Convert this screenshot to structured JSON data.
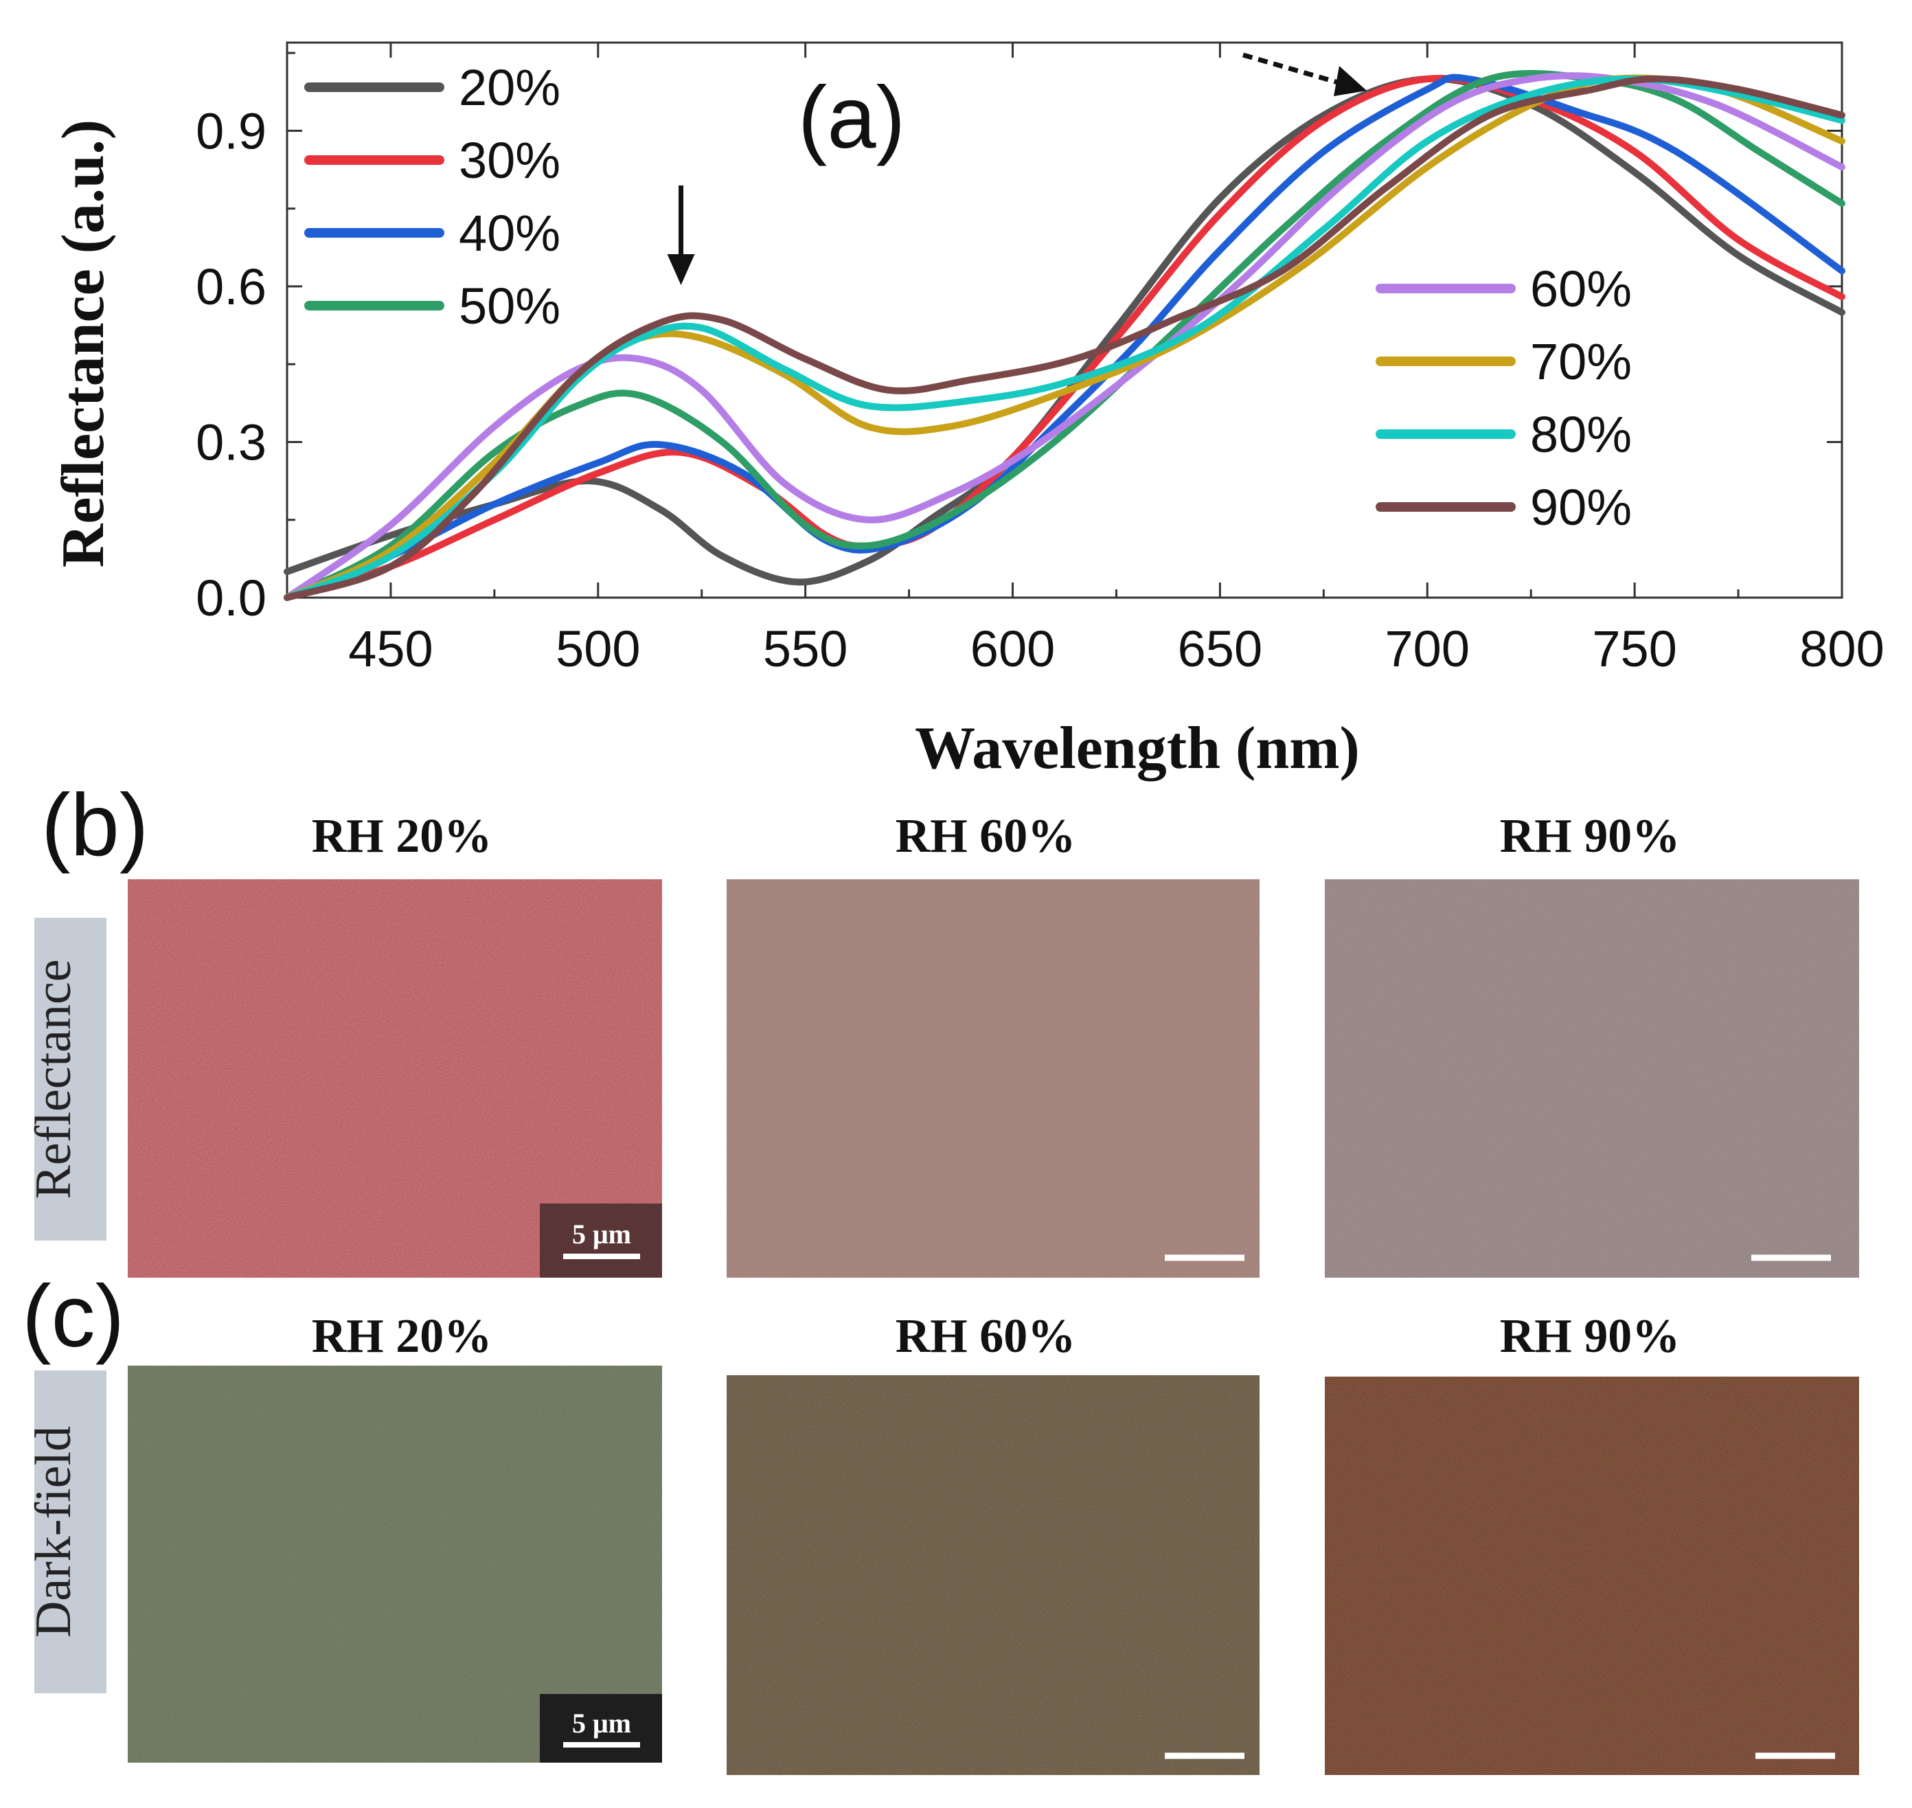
{
  "panel_a": {
    "label": "(a)",
    "chart_data": {
      "type": "line",
      "xlabel": "Wavelength (nm)",
      "ylabel": "Reflectance (a.u.)",
      "xlim": [
        425,
        800
      ],
      "ylim": [
        0,
        1.07
      ],
      "xticks": [
        450,
        500,
        550,
        600,
        650,
        700,
        750,
        800
      ],
      "yticks": [
        0.0,
        0.3,
        0.6,
        0.9
      ],
      "xtick_labels": [
        "450",
        "500",
        "550",
        "600",
        "650",
        "700",
        "750",
        "800"
      ],
      "ytick_labels": [
        "0.0",
        "0.3",
        "0.6",
        "0.9"
      ],
      "legend_placement": "top-left and right",
      "annotations": [
        {
          "type": "solid-arrow-down",
          "x": 520
        },
        {
          "type": "dashed-arrow-right",
          "x": 690
        }
      ],
      "series": [
        {
          "name": "20%",
          "color": "#555555",
          "points": [
            [
              425,
              0.05
            ],
            [
              450,
              0.12
            ],
            [
              475,
              0.18
            ],
            [
              498,
              0.225
            ],
            [
              515,
              0.17
            ],
            [
              530,
              0.08
            ],
            [
              548,
              0.03
            ],
            [
              565,
              0.07
            ],
            [
              580,
              0.15
            ],
            [
              600,
              0.27
            ],
            [
              625,
              0.52
            ],
            [
              650,
              0.77
            ],
            [
              675,
              0.93
            ],
            [
              700,
              1.0
            ],
            [
              725,
              0.95
            ],
            [
              750,
              0.82
            ],
            [
              775,
              0.66
            ],
            [
              800,
              0.55
            ]
          ]
        },
        {
          "name": "30%",
          "color": "#e8323c",
          "points": [
            [
              425,
              0.0
            ],
            [
              450,
              0.06
            ],
            [
              475,
              0.15
            ],
            [
              500,
              0.24
            ],
            [
              520,
              0.28
            ],
            [
              540,
              0.21
            ],
            [
              555,
              0.12
            ],
            [
              565,
              0.1
            ],
            [
              580,
              0.13
            ],
            [
              600,
              0.27
            ],
            [
              625,
              0.5
            ],
            [
              650,
              0.74
            ],
            [
              675,
              0.92
            ],
            [
              700,
              1.0
            ],
            [
              725,
              0.96
            ],
            [
              750,
              0.86
            ],
            [
              775,
              0.69
            ],
            [
              800,
              0.58
            ]
          ]
        },
        {
          "name": "40%",
          "color": "#1f5fd6",
          "points": [
            [
              425,
              0.0
            ],
            [
              450,
              0.08
            ],
            [
              475,
              0.18
            ],
            [
              500,
              0.26
            ],
            [
              515,
              0.295
            ],
            [
              535,
              0.24
            ],
            [
              555,
              0.11
            ],
            [
              570,
              0.1
            ],
            [
              590,
              0.18
            ],
            [
              610,
              0.33
            ],
            [
              630,
              0.49
            ],
            [
              650,
              0.67
            ],
            [
              675,
              0.86
            ],
            [
              700,
              0.98
            ],
            [
              710,
              1.0
            ],
            [
              735,
              0.94
            ],
            [
              760,
              0.86
            ],
            [
              800,
              0.63
            ]
          ]
        },
        {
          "name": "50%",
          "color": "#2e9e66",
          "points": [
            [
              425,
              0.0
            ],
            [
              450,
              0.1
            ],
            [
              475,
              0.28
            ],
            [
              495,
              0.37
            ],
            [
              510,
              0.39
            ],
            [
              530,
              0.3
            ],
            [
              550,
              0.14
            ],
            [
              565,
              0.1
            ],
            [
              585,
              0.16
            ],
            [
              610,
              0.3
            ],
            [
              640,
              0.52
            ],
            [
              665,
              0.71
            ],
            [
              690,
              0.88
            ],
            [
              715,
              1.0
            ],
            [
              740,
              1.0
            ],
            [
              760,
              0.96
            ],
            [
              780,
              0.86
            ],
            [
              800,
              0.76
            ]
          ]
        },
        {
          "name": "60%",
          "color": "#b57ee6",
          "points": [
            [
              425,
              0.0
            ],
            [
              450,
              0.14
            ],
            [
              475,
              0.33
            ],
            [
              495,
              0.44
            ],
            [
              510,
              0.46
            ],
            [
              525,
              0.4
            ],
            [
              545,
              0.22
            ],
            [
              565,
              0.15
            ],
            [
              585,
              0.2
            ],
            [
              605,
              0.29
            ],
            [
              630,
              0.44
            ],
            [
              655,
              0.61
            ],
            [
              680,
              0.8
            ],
            [
              705,
              0.95
            ],
            [
              725,
              1.0
            ],
            [
              745,
              1.0
            ],
            [
              770,
              0.95
            ],
            [
              800,
              0.83
            ]
          ]
        },
        {
          "name": "70%",
          "color": "#c9a21a",
          "points": [
            [
              425,
              0.0
            ],
            [
              450,
              0.09
            ],
            [
              475,
              0.26
            ],
            [
              495,
              0.43
            ],
            [
              510,
              0.5
            ],
            [
              525,
              0.5
            ],
            [
              545,
              0.43
            ],
            [
              565,
              0.33
            ],
            [
              585,
              0.33
            ],
            [
              610,
              0.39
            ],
            [
              640,
              0.49
            ],
            [
              670,
              0.64
            ],
            [
              700,
              0.83
            ],
            [
              725,
              0.95
            ],
            [
              745,
              1.0
            ],
            [
              770,
              0.98
            ],
            [
              800,
              0.88
            ]
          ]
        },
        {
          "name": "80%",
          "color": "#17c9c0",
          "points": [
            [
              425,
              0.0
            ],
            [
              450,
              0.08
            ],
            [
              475,
              0.24
            ],
            [
              495,
              0.42
            ],
            [
              510,
              0.5
            ],
            [
              525,
              0.52
            ],
            [
              545,
              0.44
            ],
            [
              565,
              0.37
            ],
            [
              590,
              0.38
            ],
            [
              615,
              0.42
            ],
            [
              645,
              0.52
            ],
            [
              675,
              0.71
            ],
            [
              700,
              0.88
            ],
            [
              725,
              0.97
            ],
            [
              750,
              1.0
            ],
            [
              775,
              0.97
            ],
            [
              800,
              0.92
            ]
          ]
        },
        {
          "name": "90%",
          "color": "#7a4848",
          "points": [
            [
              425,
              0.0
            ],
            [
              450,
              0.06
            ],
            [
              470,
              0.2
            ],
            [
              495,
              0.43
            ],
            [
              515,
              0.53
            ],
            [
              530,
              0.535
            ],
            [
              550,
              0.46
            ],
            [
              570,
              0.4
            ],
            [
              590,
              0.42
            ],
            [
              615,
              0.46
            ],
            [
              640,
              0.54
            ],
            [
              665,
              0.63
            ],
            [
              690,
              0.79
            ],
            [
              715,
              0.93
            ],
            [
              740,
              0.98
            ],
            [
              755,
              1.0
            ],
            [
              775,
              0.98
            ],
            [
              800,
              0.93
            ]
          ]
        }
      ]
    }
  },
  "panel_b": {
    "label": "(b)",
    "row_label": "Reflectance",
    "titles": [
      "RH 20%",
      "RH 60%",
      "RH 90%"
    ],
    "colors": [
      "#dd7a7f",
      "#9c7679",
      "#8e7b85"
    ],
    "scale_bar": "5 μm"
  },
  "panel_c": {
    "label": "(c)",
    "row_label": "Dark-field",
    "titles": [
      "RH 20%",
      "RH 60%",
      "RH 90%"
    ],
    "colors": [
      "#5e6a58",
      "#5e4c3e",
      "#6a3526"
    ],
    "scale_bar": "5 μm"
  }
}
